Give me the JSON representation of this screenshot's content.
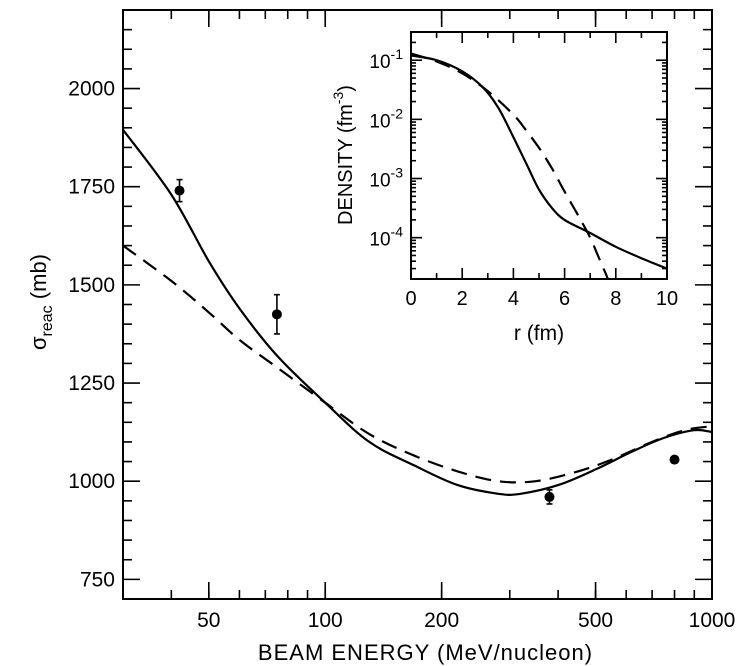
{
  "chart_data": [
    {
      "type": "line",
      "xlabel": "BEAM ENERGY (MeV/nucleon)",
      "ylabel_main": "σ",
      "ylabel_sub": "reac",
      "ylabel_unit": "(mb)",
      "xscale": "log",
      "xlim": [
        30,
        1000
      ],
      "ylim": [
        700,
        2200
      ],
      "xticks": [
        50,
        100,
        200,
        500,
        1000
      ],
      "yticks": [
        750,
        1000,
        1250,
        1500,
        1750,
        2000
      ],
      "series": [
        {
          "style": "solid",
          "x": [
            30,
            40,
            50,
            60,
            75,
            100,
            130,
            170,
            220,
            280,
            320,
            400,
            500,
            620,
            750,
            900,
            1000
          ],
          "y": [
            1895,
            1730,
            1560,
            1440,
            1320,
            1200,
            1100,
            1040,
            990,
            968,
            968,
            990,
            1030,
            1075,
            1110,
            1130,
            1125
          ]
        },
        {
          "style": "dashed",
          "x": [
            30,
            40,
            50,
            60,
            75,
            100,
            130,
            170,
            220,
            280,
            350,
            450,
            550,
            700,
            850,
            1000
          ],
          "y": [
            1600,
            1510,
            1430,
            1360,
            1290,
            1200,
            1120,
            1065,
            1025,
            1000,
            1000,
            1025,
            1055,
            1100,
            1130,
            1140
          ]
        }
      ],
      "points": [
        {
          "x": 42,
          "y": 1740,
          "err": 28
        },
        {
          "x": 75,
          "y": 1425,
          "err": 50
        },
        {
          "x": 380,
          "y": 960,
          "err": 18
        },
        {
          "x": 800,
          "y": 1055,
          "err": 8
        }
      ]
    },
    {
      "type": "line",
      "xlabel": "r (fm)",
      "ylabel": "DENSITY (fm",
      "ylabel_exp": "-3",
      "ylabel_close": ")",
      "yscale": "log",
      "xlim": [
        0,
        10
      ],
      "ylim": [
        2e-05,
        0.3
      ],
      "xticks": [
        0,
        2,
        4,
        6,
        8,
        10
      ],
      "yticks": [
        {
          "value": 0.1,
          "base": "10",
          "exp": "-1"
        },
        {
          "value": 0.01,
          "base": "10",
          "exp": "-2"
        },
        {
          "value": 0.001,
          "base": "10",
          "exp": "-3"
        },
        {
          "value": 0.0001,
          "base": "10",
          "exp": "-4"
        }
      ],
      "series": [
        {
          "style": "solid",
          "x": [
            0,
            1,
            2,
            2.8,
            3.4,
            4,
            4.5,
            5,
            5.5,
            6,
            7,
            8,
            9,
            10
          ],
          "y": [
            0.12,
            0.1,
            0.065,
            0.035,
            0.016,
            0.005,
            0.0018,
            0.00065,
            0.00032,
            0.0002,
            0.00012,
            7e-05,
            4.5e-05,
            3e-05
          ]
        },
        {
          "style": "dashed",
          "x": [
            0,
            1,
            2,
            3,
            4,
            4.5,
            5,
            5.5,
            6,
            6.5,
            7,
            7.3,
            7.6,
            7.8
          ],
          "y": [
            0.13,
            0.095,
            0.06,
            0.03,
            0.012,
            0.0065,
            0.0033,
            0.0015,
            0.0006,
            0.00025,
            0.0001,
            5e-05,
            2.5e-05,
            1.5e-05
          ]
        }
      ]
    }
  ]
}
